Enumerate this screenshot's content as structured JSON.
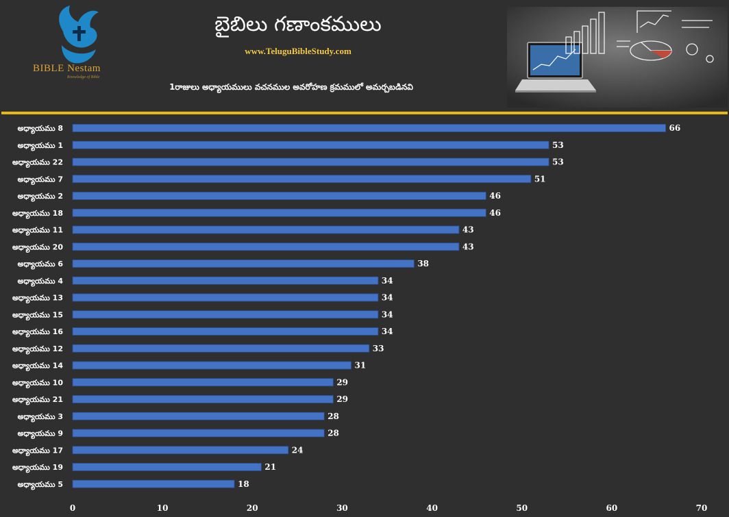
{
  "header": {
    "title": "బైబిలు గణాంకములు",
    "website": "www.TeluguBibleStudy.com",
    "subtitle": "1రాజులు అధ్యాయములు వచనముల అవరోహణ క్రమములో అమర్చబడినవి",
    "logo_text": "BIBLE Nestam",
    "logo_tagline": "Knowledge of Bible"
  },
  "colors": {
    "background": "#2f2f2f",
    "bar": "#4472c4",
    "divider": "#e8b80f",
    "website": "#f2c744",
    "logo_text": "#d9a33a"
  },
  "chart_data": {
    "type": "bar",
    "orientation": "horizontal",
    "categories": [
      "అధ్యాయము 8",
      "అధ్యాయము 1",
      "అధ్యాయము 22",
      "అధ్యాయము 7",
      "అధ్యాయము 2",
      "అధ్యాయము 18",
      "అధ్యాయము 11",
      "అధ్యాయము 20",
      "అధ్యాయము 6",
      "అధ్యాయము 4",
      "అధ్యాయము 13",
      "అధ్యాయము 15",
      "అధ్యాయము 16",
      "అధ్యాయము 12",
      "అధ్యాయము 14",
      "అధ్యాయము 10",
      "అధ్యాయము 21",
      "అధ్యాయము 3",
      "అధ్యాయము 9",
      "అధ్యాయము 17",
      "అధ్యాయము 19",
      "అధ్యాయము 5"
    ],
    "values": [
      66,
      53,
      53,
      51,
      46,
      46,
      43,
      43,
      38,
      34,
      34,
      34,
      34,
      33,
      31,
      29,
      29,
      28,
      28,
      24,
      21,
      18
    ],
    "xlim": [
      0,
      70
    ],
    "xticks": [
      0,
      10,
      20,
      30,
      40,
      50,
      60,
      70
    ],
    "data_labels": true,
    "grid": false
  }
}
